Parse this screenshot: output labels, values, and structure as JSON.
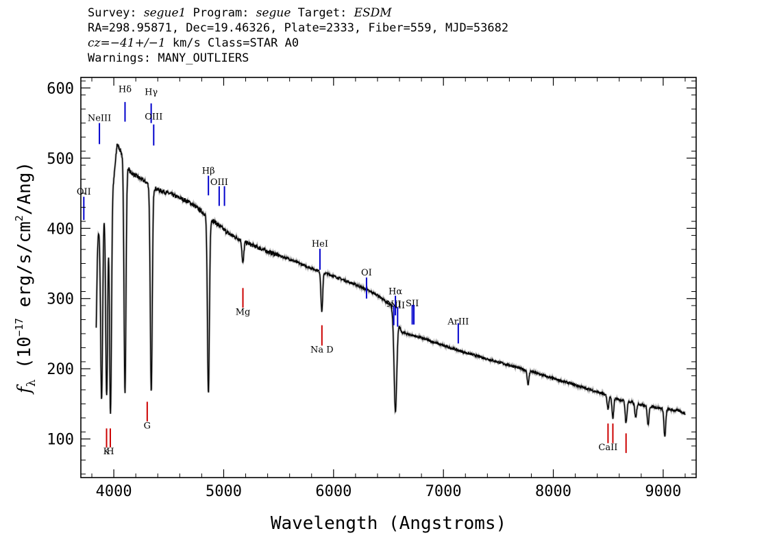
{
  "header": {
    "l1_a": "Survey: ",
    "l1_survey": "segue1",
    "l1_b": " Program: ",
    "l1_program": "segue",
    "l1_c": " Target: ",
    "l1_target": "ESDM",
    "line2": "RA=298.95871, Dec=19.46326, Plate=2333, Fiber=559, MJD=53682",
    "l3_cz": "cz=−41+/−1",
    "l3_rest": " km/s Class=STAR A0",
    "line4": "Warnings: MANY_OUTLIERS"
  },
  "chart_data": {
    "type": "line",
    "xlabel": "Wavelength (Angstroms)",
    "ylabel": "f_λ (10^-17 erg/s/cm^2/Ang)",
    "xlim": [
      3700,
      9300
    ],
    "ylim": [
      45,
      615
    ],
    "x_ticks": [
      4000,
      5000,
      6000,
      7000,
      8000,
      9000
    ],
    "y_ticks": [
      100,
      200,
      300,
      400,
      500,
      600
    ],
    "grid": false,
    "colors": {
      "spectrum": "#000000",
      "emission": "#0000cc",
      "absorption": "#cc0000"
    },
    "continuum": [
      [
        3840,
        390
      ],
      [
        3880,
        400
      ],
      [
        3930,
        440
      ],
      [
        4000,
        470
      ],
      [
        4030,
        520
      ],
      [
        4080,
        505
      ],
      [
        4150,
        480
      ],
      [
        4250,
        470
      ],
      [
        4330,
        462
      ],
      [
        4400,
        455
      ],
      [
        4500,
        450
      ],
      [
        4650,
        440
      ],
      [
        4700,
        436
      ],
      [
        4800,
        424
      ],
      [
        4950,
        405
      ],
      [
        5050,
        392
      ],
      [
        5200,
        380
      ],
      [
        5400,
        367
      ],
      [
        5600,
        356
      ],
      [
        5800,
        343
      ],
      [
        6000,
        332
      ],
      [
        6200,
        320
      ],
      [
        6400,
        305
      ],
      [
        6520,
        290
      ],
      [
        6620,
        252
      ],
      [
        6800,
        244
      ],
      [
        7000,
        233
      ],
      [
        7200,
        223
      ],
      [
        7400,
        214
      ],
      [
        7600,
        205
      ],
      [
        7800,
        196
      ],
      [
        8000,
        186
      ],
      [
        8200,
        177
      ],
      [
        8400,
        167
      ],
      [
        8600,
        156
      ],
      [
        8800,
        149
      ],
      [
        9000,
        143
      ],
      [
        9150,
        140
      ],
      [
        9200,
        136
      ]
    ],
    "absorption_dips": [
      {
        "wave": 3835,
        "flux": 240
      },
      {
        "wave": 3889,
        "flux": 155
      },
      {
        "wave": 3935,
        "flux": 160
      },
      {
        "wave": 3970,
        "flux": 135
      },
      {
        "wave": 4102,
        "flux": 168
      },
      {
        "wave": 4341,
        "flux": 165
      },
      {
        "wave": 4861,
        "flux": 165
      },
      {
        "wave": 5175,
        "flux": 350
      },
      {
        "wave": 5893,
        "flux": 282
      },
      {
        "wave": 6563,
        "flux": 140
      },
      {
        "wave": 7770,
        "flux": 178
      },
      {
        "wave": 8498,
        "flux": 143
      },
      {
        "wave": 8542,
        "flux": 130
      },
      {
        "wave": 8662,
        "flux": 123
      },
      {
        "wave": 8750,
        "flux": 130
      },
      {
        "wave": 8863,
        "flux": 120
      },
      {
        "wave": 9015,
        "flux": 103
      }
    ],
    "emission_lines": [
      {
        "label": "OII",
        "wave": 3727,
        "y0": 412,
        "y1": 445,
        "label_y": 448
      },
      {
        "label": "NeIII",
        "wave": 3869,
        "y0": 520,
        "y1": 550,
        "label_y": 553
      },
      {
        "label": "Hδ",
        "wave": 4102,
        "y0": 552,
        "y1": 580,
        "label_y": 594
      },
      {
        "label": "Hγ",
        "wave": 4340,
        "y0": 550,
        "y1": 578,
        "label_y": 590
      },
      {
        "label": "OIII",
        "wave": 4363,
        "y0": 518,
        "y1": 548,
        "label_y": 555
      },
      {
        "label": "Hβ",
        "wave": 4861,
        "y0": 447,
        "y1": 475,
        "label_y": 478
      },
      {
        "label": "OIII",
        "wave": 4959,
        "y0": 432,
        "y1": 460,
        "label_y": 462
      },
      {
        "label": "",
        "wave": 5007,
        "y0": 432,
        "y1": 460
      },
      {
        "label": "HeI",
        "wave": 5876,
        "y0": 341,
        "y1": 371,
        "label_y": 374
      },
      {
        "label": "OI",
        "wave": 6300,
        "y0": 300,
        "y1": 330,
        "label_y": 333
      },
      {
        "label": "NII",
        "wave": 6548,
        "y0": 262,
        "y1": 290,
        "label_y": 288
      },
      {
        "label": "Hα",
        "wave": 6563,
        "y0": 276,
        "y1": 304,
        "label_y": 306
      },
      {
        "label": "NII",
        "wave": 6583,
        "y0": 260,
        "y1": 288,
        "label_y": 286
      },
      {
        "label": "SII",
        "wave": 6716,
        "y0": 263,
        "y1": 291,
        "label_y": 289
      },
      {
        "label": "",
        "wave": 6731,
        "y0": 263,
        "y1": 291
      },
      {
        "label": "ArIII",
        "wave": 7135,
        "y0": 236,
        "y1": 265,
        "label_y": 263
      }
    ],
    "absorption_lines": [
      {
        "label": "K",
        "wave": 3934,
        "y0": 88,
        "y1": 115,
        "label_y": 78
      },
      {
        "label": "H",
        "wave": 3968,
        "y0": 88,
        "y1": 115,
        "label_y": 78
      },
      {
        "label": "G",
        "wave": 4304,
        "y0": 125,
        "y1": 153,
        "label_y": 115
      },
      {
        "label": "Mg",
        "wave": 5175,
        "y0": 287,
        "y1": 315,
        "label_y": 277
      },
      {
        "label": "Na D",
        "wave": 5894,
        "y0": 233,
        "y1": 262,
        "label_y": 223
      },
      {
        "label": "CaII",
        "wave": 8498,
        "y0": 94,
        "y1": 122,
        "label_y": 84
      },
      {
        "label": "",
        "wave": 8542,
        "y0": 94,
        "y1": 122
      },
      {
        "label": "",
        "wave": 8662,
        "y0": 80,
        "y1": 108
      }
    ]
  }
}
